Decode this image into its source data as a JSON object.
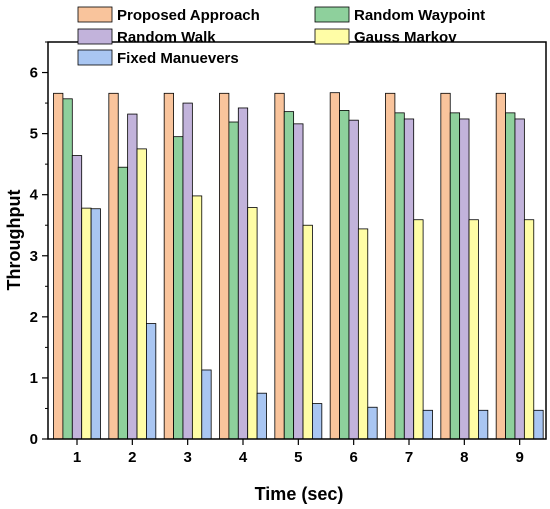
{
  "chart_data": {
    "type": "bar",
    "xlabel": "Time (sec)",
    "ylabel": "Throughput",
    "ylim": [
      0,
      6.5
    ],
    "yticks": [
      0,
      1,
      2,
      3,
      4,
      5,
      6
    ],
    "categories": [
      "1",
      "2",
      "3",
      "4",
      "5",
      "6",
      "7",
      "8",
      "9"
    ],
    "legend_position": "top",
    "grid": false,
    "series": [
      {
        "name": "Proposed Approach",
        "color": "#F9C49C",
        "values": [
          5.66,
          5.66,
          5.66,
          5.66,
          5.66,
          5.67,
          5.66,
          5.66,
          5.66
        ]
      },
      {
        "name": "Random Waypoint",
        "color": "#8ED09C",
        "values": [
          5.57,
          4.45,
          4.95,
          5.19,
          5.36,
          5.38,
          5.34,
          5.34,
          5.34
        ]
      },
      {
        "name": "Random Walk",
        "color": "#C2B3DB",
        "values": [
          4.64,
          5.32,
          5.5,
          5.42,
          5.16,
          5.22,
          5.24,
          5.24,
          5.24
        ]
      },
      {
        "name": "Gauss Markov",
        "color": "#FFFDA6",
        "values": [
          3.78,
          4.75,
          3.98,
          3.79,
          3.5,
          3.44,
          3.59,
          3.59,
          3.59
        ]
      },
      {
        "name": "Fixed Manuevers",
        "color": "#A9C6F2",
        "values": [
          3.77,
          1.89,
          1.13,
          0.75,
          0.58,
          0.52,
          0.47,
          0.47,
          0.47
        ]
      }
    ]
  }
}
